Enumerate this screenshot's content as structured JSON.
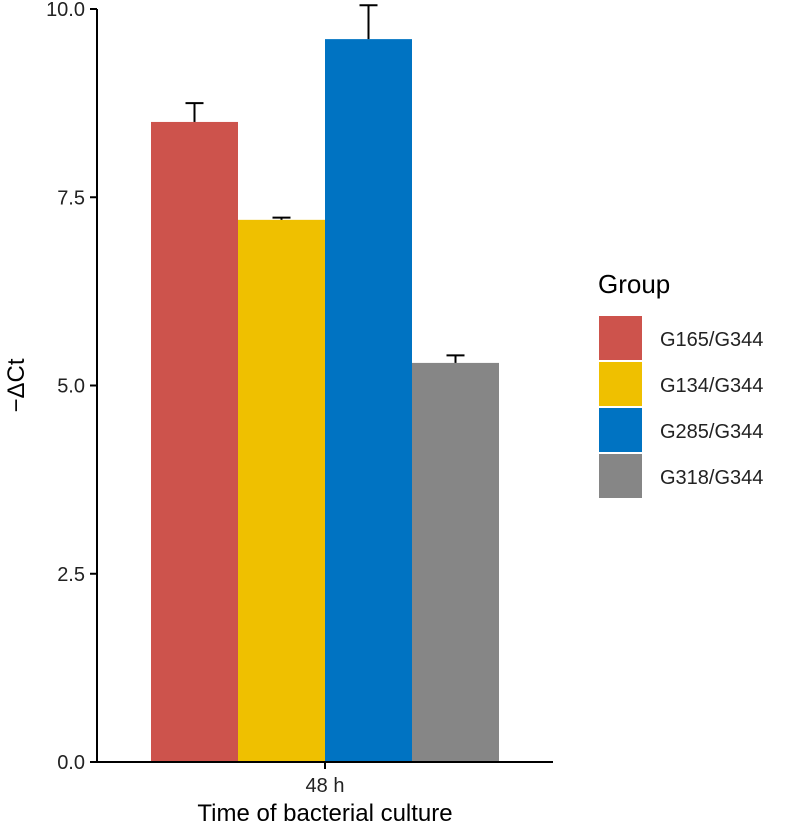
{
  "chart_data": {
    "type": "bar",
    "title": "",
    "xlabel": "Time of bacterial culture",
    "ylabel": "−ΔCt",
    "categories": [
      "48 h"
    ],
    "ylim": [
      0,
      10
    ],
    "yticks": [
      0.0,
      2.5,
      5.0,
      7.5,
      10.0
    ],
    "ytick_labels": [
      "0.0",
      "2.5",
      "5.0",
      "7.5",
      "10.0"
    ],
    "grid": false,
    "legend": {
      "title": "Group",
      "placement": "right"
    },
    "series": [
      {
        "name": "G165/G344",
        "values": [
          8.5
        ],
        "error": [
          0.25
        ],
        "color": "#CD534C"
      },
      {
        "name": "G134/G344",
        "values": [
          7.2
        ],
        "error": [
          0.03
        ],
        "color": "#EFC000"
      },
      {
        "name": "G285/G344",
        "values": [
          9.6
        ],
        "error": [
          0.45
        ],
        "color": "#0073C2"
      },
      {
        "name": "G318/G344",
        "values": [
          5.3
        ],
        "error": [
          0.1
        ],
        "color": "#868686"
      }
    ]
  }
}
